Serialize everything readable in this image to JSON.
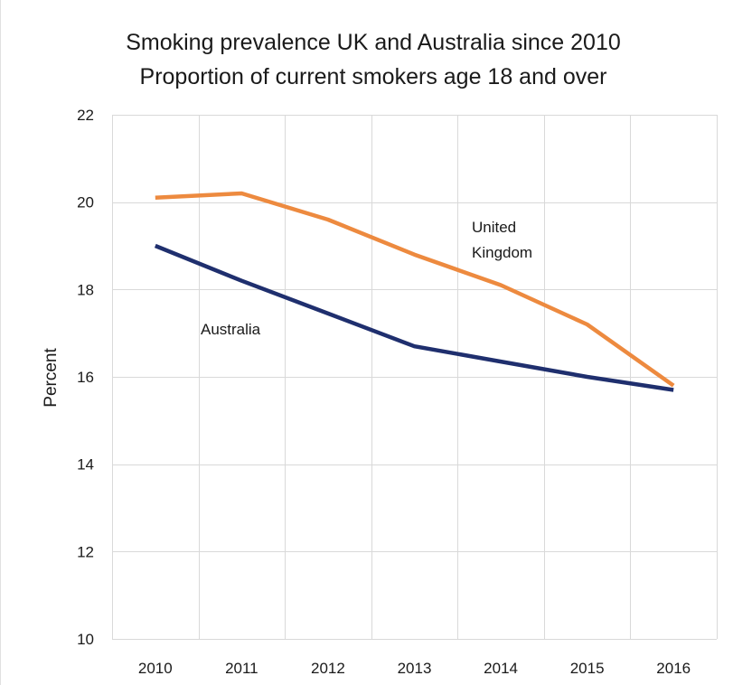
{
  "chart_data": {
    "type": "line",
    "title": "Smoking prevalence UK and Australia since 2010",
    "subtitle": "Proportion of current smokers age 18 and over",
    "xlabel": "",
    "ylabel": "Percent",
    "categories": [
      "2010",
      "2011",
      "2012",
      "2013",
      "2014",
      "2015",
      "2016"
    ],
    "ylim": [
      10,
      22
    ],
    "yticks": [
      "10",
      "12",
      "14",
      "16",
      "18",
      "20",
      "22"
    ],
    "grid": true,
    "series": [
      {
        "name": "Australia",
        "label_lines": [
          "Australia"
        ],
        "color": "#1f2f6e",
        "values": [
          19.0,
          18.2,
          17.45,
          16.7,
          16.35,
          16.0,
          15.7
        ]
      },
      {
        "name": "United Kingdom",
        "label_lines": [
          "United",
          "Kingdom"
        ],
        "color": "#ed8a3f",
        "values": [
          20.1,
          20.2,
          19.6,
          18.8,
          18.1,
          17.2,
          15.8
        ]
      }
    ],
    "gridline_color": "#d9d9d9"
  }
}
